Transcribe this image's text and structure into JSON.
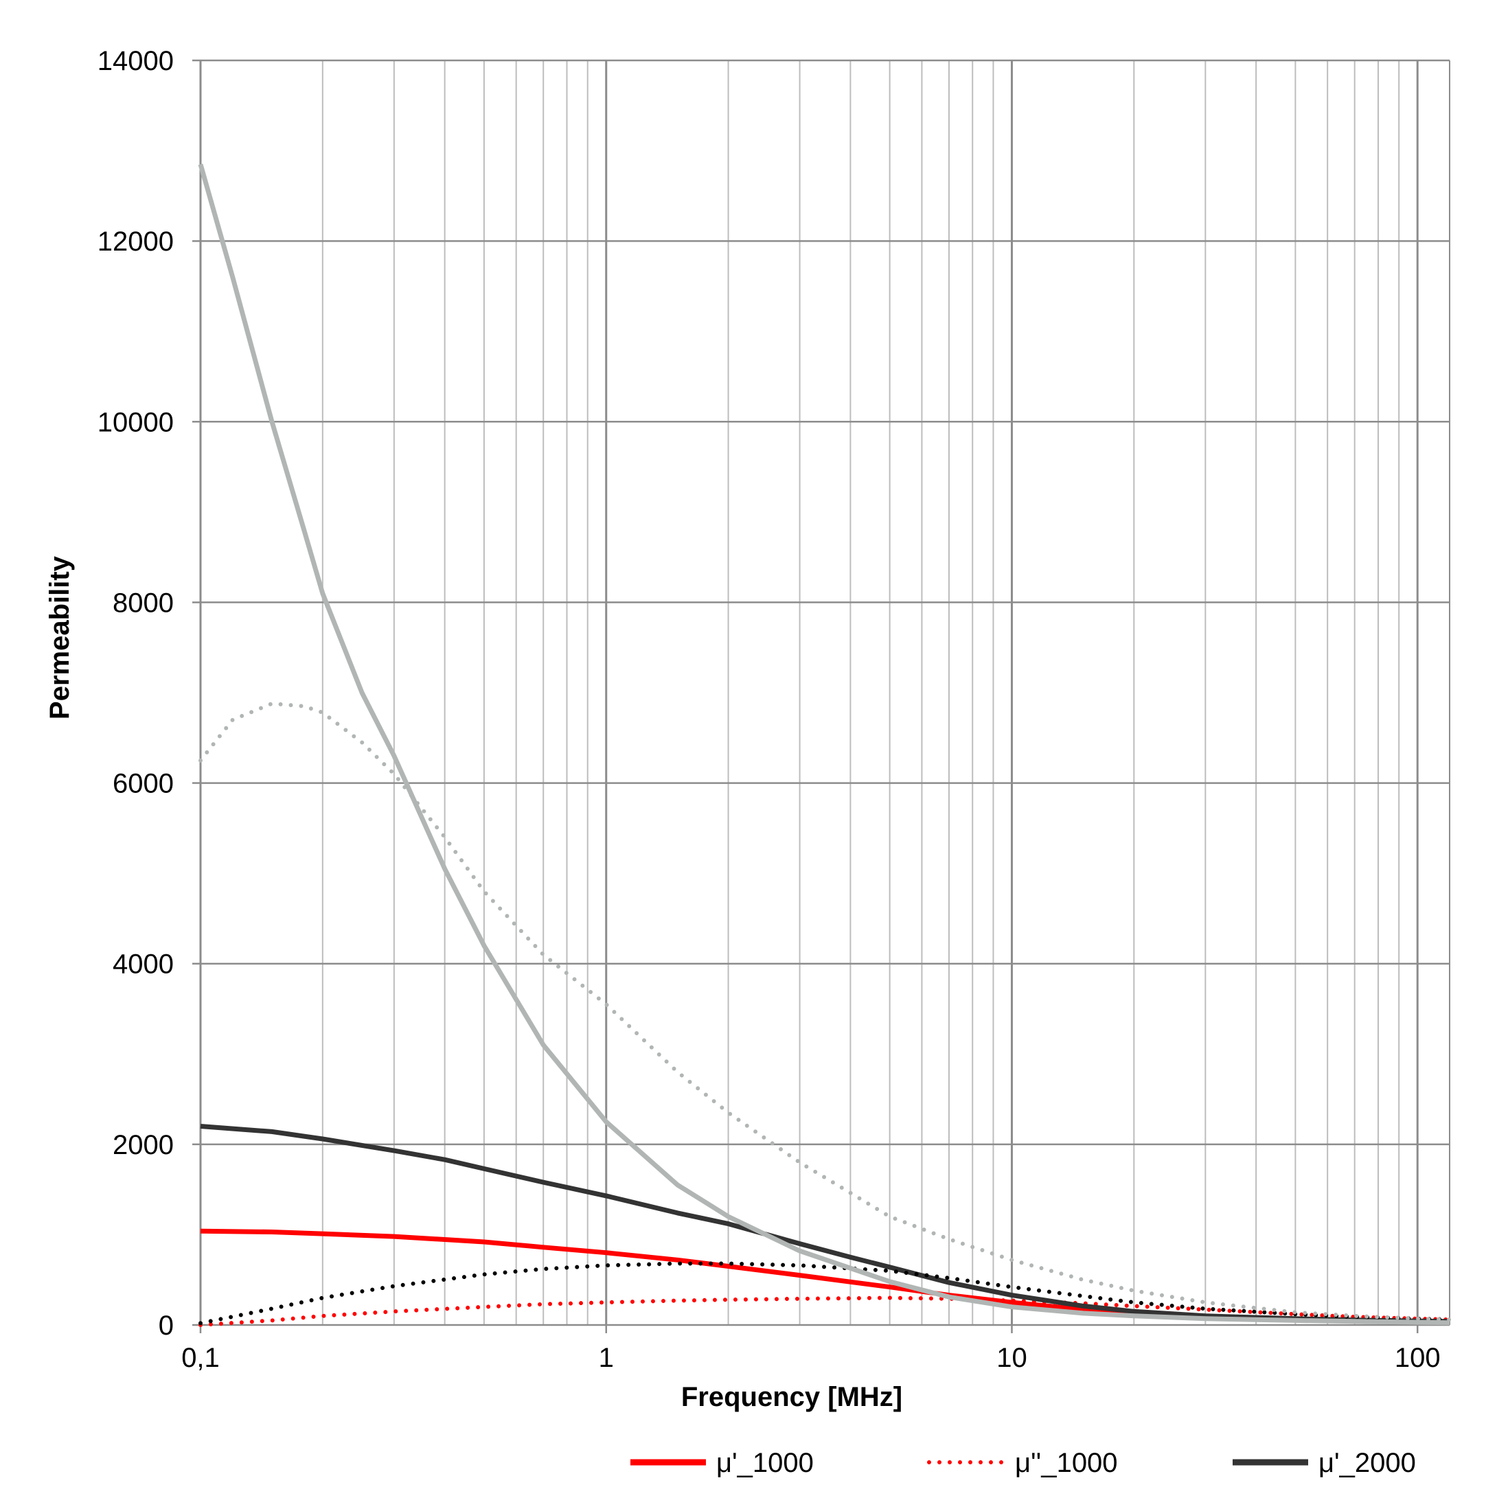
{
  "chart_data": {
    "type": "line",
    "xlabel": "Frequency [MHz]",
    "ylabel": "Permeability",
    "x_scale": "log",
    "xlim": [
      0.1,
      120
    ],
    "ylim": [
      0,
      14000
    ],
    "grid": true,
    "legend_position": "bottom",
    "x_ticks": [
      {
        "value": 0.1,
        "label": "0,1"
      },
      {
        "value": 1,
        "label": "1"
      },
      {
        "value": 10,
        "label": "10"
      },
      {
        "value": 100,
        "label": "100"
      }
    ],
    "y_ticks": [
      {
        "value": 0,
        "label": "0"
      },
      {
        "value": 2000,
        "label": "2000"
      },
      {
        "value": 4000,
        "label": "4000"
      },
      {
        "value": 6000,
        "label": "6000"
      },
      {
        "value": 8000,
        "label": "8000"
      },
      {
        "value": 10000,
        "label": "10000"
      },
      {
        "value": 12000,
        "label": "12000"
      },
      {
        "value": 14000,
        "label": "14000"
      }
    ],
    "series": [
      {
        "name": "μ'_1000",
        "color": "#ff0000",
        "style": "solid",
        "in_legend": true,
        "x": [
          0.1,
          0.15,
          0.2,
          0.3,
          0.5,
          0.7,
          1,
          1.5,
          2,
          3,
          5,
          7,
          10,
          15,
          20,
          30,
          50,
          70,
          100,
          120
        ],
        "y": [
          1040,
          1030,
          1010,
          980,
          920,
          860,
          800,
          720,
          650,
          550,
          420,
          330,
          250,
          170,
          130,
          90,
          60,
          45,
          35,
          30
        ]
      },
      {
        "name": "μ''_1000",
        "color": "#ff0000",
        "style": "dotted",
        "in_legend": true,
        "x": [
          0.1,
          0.15,
          0.2,
          0.3,
          0.5,
          0.7,
          1,
          1.5,
          2,
          3,
          5,
          7,
          10,
          15,
          20,
          30,
          50,
          70,
          100,
          120
        ],
        "y": [
          0,
          50,
          100,
          150,
          200,
          230,
          250,
          270,
          280,
          290,
          300,
          290,
          270,
          240,
          210,
          170,
          120,
          90,
          70,
          60
        ]
      },
      {
        "name": "μ'_2000",
        "color": "#333333",
        "style": "solid",
        "in_legend": true,
        "x": [
          0.1,
          0.15,
          0.2,
          0.3,
          0.4,
          0.5,
          0.7,
          1,
          1.5,
          2,
          3,
          4,
          5,
          7,
          10,
          15,
          20,
          30,
          50,
          70,
          100,
          120
        ],
        "y": [
          2200,
          2140,
          2060,
          1930,
          1830,
          1730,
          1580,
          1430,
          1240,
          1120,
          900,
          750,
          640,
          470,
          330,
          210,
          150,
          100,
          70,
          55,
          45,
          40
        ]
      },
      {
        "name": "",
        "color": "#000000",
        "style": "dotted",
        "in_legend": false,
        "x": [
          0.1,
          0.15,
          0.2,
          0.3,
          0.5,
          0.7,
          1,
          1.5,
          2,
          3,
          5,
          7,
          10,
          15,
          20,
          30,
          50,
          70,
          100,
          120
        ],
        "y": [
          20,
          180,
          300,
          430,
          560,
          620,
          660,
          680,
          680,
          660,
          600,
          520,
          420,
          320,
          250,
          180,
          120,
          90,
          70,
          60
        ]
      },
      {
        "name": "",
        "color": "#b1b6b4",
        "style": "solid",
        "in_legend": false,
        "x": [
          0.1,
          0.12,
          0.15,
          0.18,
          0.2,
          0.25,
          0.3,
          0.4,
          0.5,
          0.7,
          1,
          1.5,
          2,
          3,
          5,
          7,
          10,
          15,
          20,
          30,
          50,
          70,
          100,
          120
        ],
        "y": [
          12850,
          11600,
          10000,
          8800,
          8100,
          7000,
          6300,
          5050,
          4200,
          3100,
          2250,
          1550,
          1200,
          820,
          480,
          310,
          200,
          130,
          100,
          70,
          50,
          40,
          30,
          25
        ]
      },
      {
        "name": "",
        "color": "#b1b6b4",
        "style": "dotted",
        "in_legend": false,
        "x": [
          0.1,
          0.12,
          0.15,
          0.18,
          0.2,
          0.25,
          0.3,
          0.4,
          0.5,
          0.7,
          1,
          1.5,
          2,
          3,
          5,
          7,
          10,
          15,
          20,
          30,
          50,
          70,
          100,
          120
        ],
        "y": [
          6250,
          6700,
          6880,
          6850,
          6780,
          6450,
          6100,
          5400,
          4800,
          4100,
          3550,
          2800,
          2350,
          1800,
          1200,
          950,
          720,
          500,
          380,
          250,
          140,
          100,
          70,
          60
        ]
      }
    ]
  }
}
